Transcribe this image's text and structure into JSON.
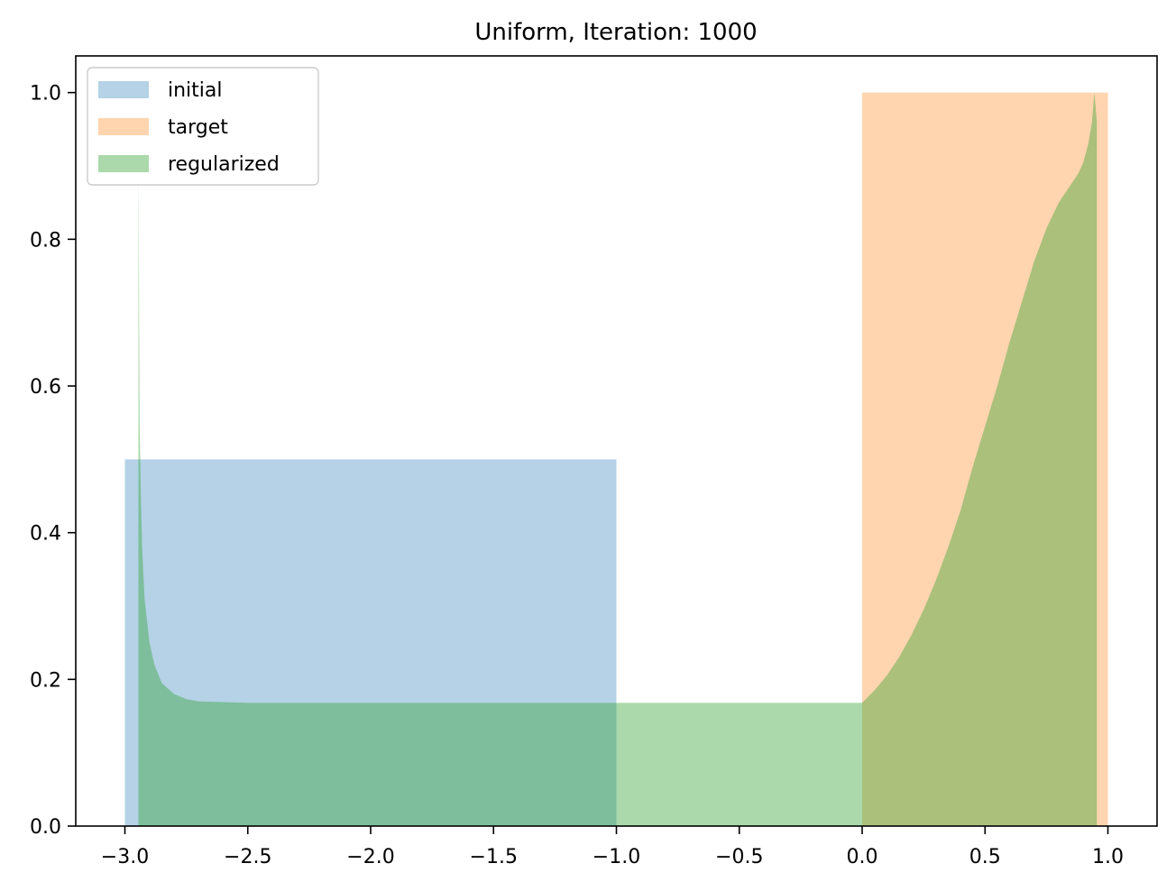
{
  "chart_data": {
    "type": "area",
    "title": "Uniform, Iteration: 1000",
    "xlabel": "",
    "ylabel": "",
    "xlim": [
      -3.2,
      1.2
    ],
    "ylim": [
      0.0,
      1.05
    ],
    "xticks": [
      -3.0,
      -2.5,
      -2.0,
      -1.5,
      -1.0,
      -0.5,
      0.0,
      0.5,
      1.0
    ],
    "xtick_labels": [
      "−3.0",
      "−2.5",
      "−2.0",
      "−1.5",
      "−1.0",
      "−0.5",
      "0.0",
      "0.5",
      "1.0"
    ],
    "yticks": [
      0.0,
      0.2,
      0.4,
      0.6,
      0.8,
      1.0
    ],
    "ytick_labels": [
      "0.0",
      "0.2",
      "0.4",
      "0.6",
      "0.8",
      "1.0"
    ],
    "grid": false,
    "legend_position": "top-left",
    "series": [
      {
        "name": "initial",
        "color": "#1f77b4",
        "opacity": 0.33,
        "points": [
          [
            -3.0,
            0.0
          ],
          [
            -3.0,
            0.5
          ],
          [
            -1.0,
            0.5
          ],
          [
            -1.0,
            0.0
          ]
        ]
      },
      {
        "name": "target",
        "color": "#ff7f0e",
        "opacity": 0.33,
        "points": [
          [
            0.0,
            0.0
          ],
          [
            0.0,
            1.0
          ],
          [
            1.0,
            1.0
          ],
          [
            1.0,
            0.0
          ]
        ]
      },
      {
        "name": "regularized",
        "color": "#2ca02c",
        "opacity": 0.4,
        "points": [
          [
            -2.945,
            0.0
          ],
          [
            -2.945,
            0.9
          ],
          [
            -2.94,
            0.55
          ],
          [
            -2.935,
            0.45
          ],
          [
            -2.93,
            0.38
          ],
          [
            -2.92,
            0.31
          ],
          [
            -2.9,
            0.25
          ],
          [
            -2.88,
            0.22
          ],
          [
            -2.85,
            0.195
          ],
          [
            -2.8,
            0.18
          ],
          [
            -2.75,
            0.173
          ],
          [
            -2.7,
            0.17
          ],
          [
            -2.5,
            0.168
          ],
          [
            -2.0,
            0.168
          ],
          [
            -1.0,
            0.168
          ],
          [
            0.0,
            0.168
          ],
          [
            0.05,
            0.185
          ],
          [
            0.1,
            0.205
          ],
          [
            0.15,
            0.23
          ],
          [
            0.2,
            0.26
          ],
          [
            0.25,
            0.295
          ],
          [
            0.3,
            0.335
          ],
          [
            0.35,
            0.38
          ],
          [
            0.4,
            0.43
          ],
          [
            0.45,
            0.49
          ],
          [
            0.5,
            0.545
          ],
          [
            0.55,
            0.6
          ],
          [
            0.6,
            0.66
          ],
          [
            0.65,
            0.715
          ],
          [
            0.7,
            0.77
          ],
          [
            0.75,
            0.815
          ],
          [
            0.8,
            0.85
          ],
          [
            0.85,
            0.875
          ],
          [
            0.88,
            0.89
          ],
          [
            0.9,
            0.905
          ],
          [
            0.92,
            0.93
          ],
          [
            0.935,
            0.96
          ],
          [
            0.945,
            1.0
          ],
          [
            0.955,
            0.96
          ],
          [
            0.955,
            0.0
          ]
        ]
      }
    ]
  }
}
